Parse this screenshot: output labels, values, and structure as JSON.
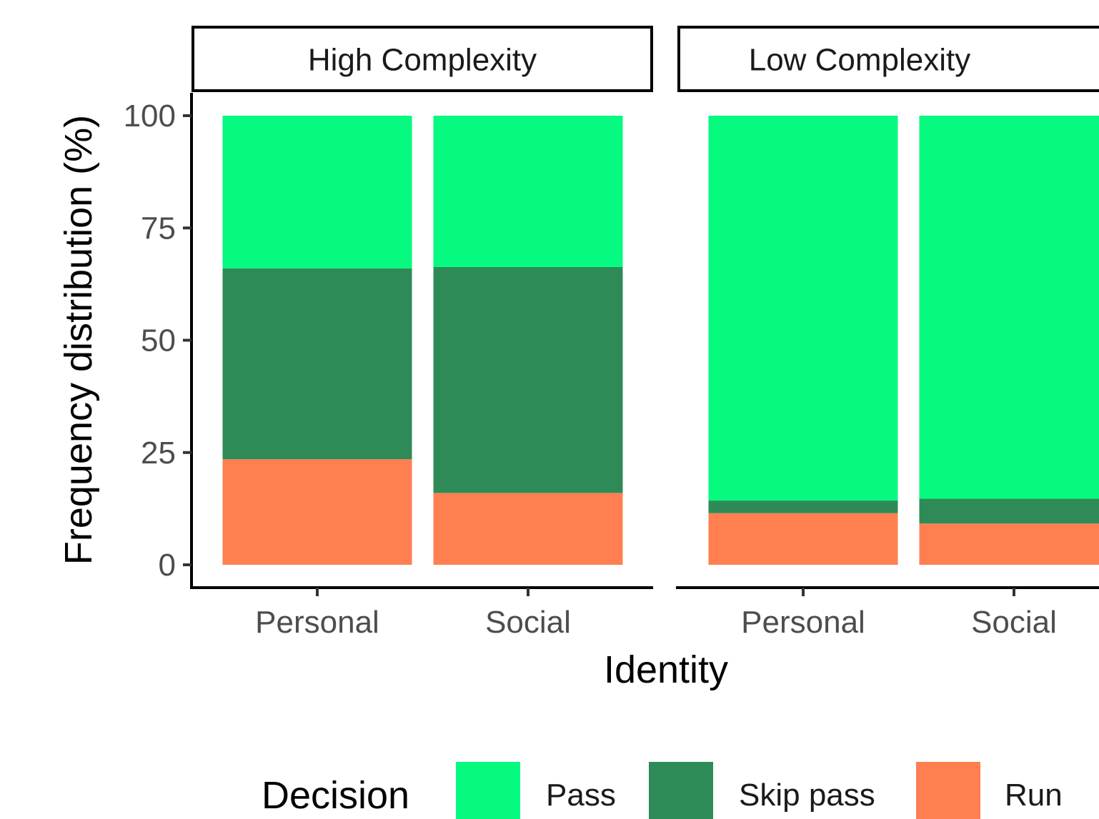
{
  "chart_data": {
    "type": "bar",
    "stacked": true,
    "xlabel": "Identity",
    "ylabel": "Frequency distribution (%)",
    "ylim": [
      0,
      100
    ],
    "yticks": [
      0,
      25,
      50,
      75,
      100
    ],
    "categories": [
      "Personal",
      "Social"
    ],
    "grid": false,
    "legend": {
      "title": "Decision",
      "placement": "bottom",
      "entries": [
        "Pass",
        "Skip pass",
        "Run"
      ]
    },
    "colors": {
      "Pass": "#06fa7f",
      "Skip pass": "#2e8b57",
      "Run": "#ff7f50"
    },
    "panels": [
      {
        "title": "High Complexity",
        "series": [
          {
            "name": "Run",
            "values": [
              23.5,
              16
            ]
          },
          {
            "name": "Skip pass",
            "values": [
              42.5,
              50.3
            ]
          },
          {
            "name": "Pass",
            "values": [
              34,
              33.7
            ]
          }
        ]
      },
      {
        "title": "Low Complexity",
        "series": [
          {
            "name": "Run",
            "values": [
              11.5,
              9.2
            ]
          },
          {
            "name": "Skip pass",
            "values": [
              2.8,
              5.5
            ]
          },
          {
            "name": "Pass",
            "values": [
              85.7,
              85.3
            ]
          }
        ]
      }
    ]
  }
}
